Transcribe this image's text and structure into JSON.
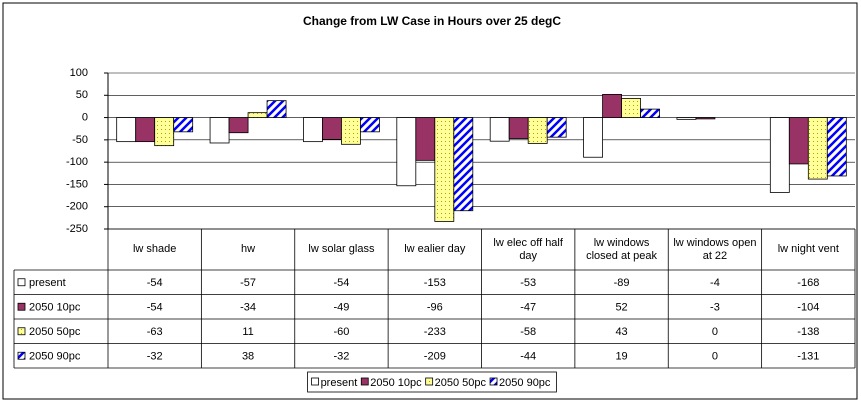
{
  "chart_data": {
    "type": "bar",
    "title": "Change from LW Case in Hours over 25 degC",
    "categories": [
      "lw shade",
      "hw",
      "lw solar glass",
      "lw ealier day",
      "lw elec off half day",
      "lw windows closed at peak",
      "lw windows open at 22",
      "lw night vent"
    ],
    "series": [
      {
        "name": "present",
        "color": "#ffffff",
        "pattern": "solid",
        "values": [
          -54,
          -57,
          -54,
          -153,
          -53,
          -89,
          -4,
          -168
        ]
      },
      {
        "name": "2050 10pc",
        "color": "#993366",
        "pattern": "solid",
        "values": [
          -54,
          -34,
          -49,
          -96,
          -47,
          52,
          -3,
          -104
        ]
      },
      {
        "name": "2050 50pc",
        "color": "#ffff99",
        "pattern": "dots",
        "values": [
          -63,
          11,
          -60,
          -233,
          -58,
          43,
          0,
          -138
        ]
      },
      {
        "name": "2050 90pc",
        "color": "#0000ff",
        "pattern": "diagonal",
        "values": [
          -32,
          38,
          -32,
          -209,
          -44,
          19,
          0,
          -131
        ]
      }
    ],
    "ylim": [
      -250,
      100
    ],
    "yticks": [
      100,
      50,
      0,
      -50,
      -100,
      -150,
      -200,
      -250
    ],
    "grid": true,
    "legend": "bottom"
  }
}
